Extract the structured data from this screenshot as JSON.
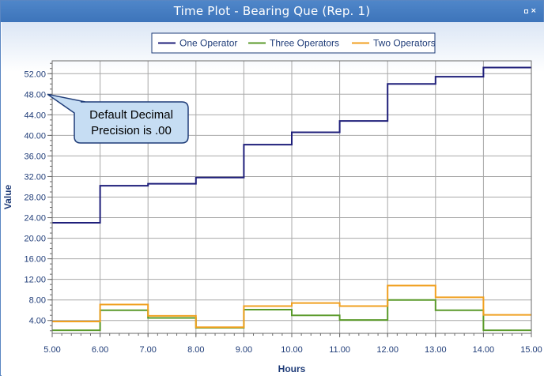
{
  "window": {
    "title": "Time Plot - Bearing Que (Rep. 1)",
    "restore_icon": "restore-icon",
    "close_icon": "close-icon"
  },
  "annotation": {
    "text_line1": "Default Decimal",
    "text_line2": "Precision is .00"
  },
  "chart_data": {
    "type": "line",
    "step": true,
    "xlabel": "Hours",
    "ylabel": "Value",
    "xlim": [
      5,
      15
    ],
    "ylim": [
      1.5,
      54.5
    ],
    "x_ticks": [
      "5.00",
      "6.00",
      "7.00",
      "8.00",
      "9.00",
      "10.00",
      "11.00",
      "12.00",
      "13.00",
      "14.00",
      "15.00"
    ],
    "y_ticks": [
      "4.00",
      "8.00",
      "12.00",
      "16.00",
      "20.00",
      "24.00",
      "28.00",
      "32.00",
      "36.00",
      "40.00",
      "44.00",
      "48.00",
      "52.00"
    ],
    "grid": true,
    "legend_position": "top",
    "series": [
      {
        "name": "One Operator",
        "color": "#1f1f7a",
        "points": [
          [
            5,
            23.0
          ],
          [
            6,
            30.2
          ],
          [
            7,
            30.6
          ],
          [
            8,
            31.8
          ],
          [
            9,
            38.2
          ],
          [
            10,
            40.6
          ],
          [
            11,
            42.8
          ],
          [
            12,
            50.0
          ],
          [
            13,
            51.4
          ],
          [
            14,
            53.2
          ],
          [
            15,
            53.2
          ]
        ]
      },
      {
        "name": "Three Operators",
        "color": "#5a9a2a",
        "points": [
          [
            5,
            2.1
          ],
          [
            6,
            6.0
          ],
          [
            7,
            4.5
          ],
          [
            8,
            2.6
          ],
          [
            9,
            6.1
          ],
          [
            10,
            5.0
          ],
          [
            11,
            4.1
          ],
          [
            12,
            8.0
          ],
          [
            13,
            6.0
          ],
          [
            14,
            2.1
          ],
          [
            15,
            2.1
          ]
        ]
      },
      {
        "name": "Two Operators",
        "color": "#f0a020",
        "points": [
          [
            5,
            3.8
          ],
          [
            6,
            7.1
          ],
          [
            7,
            4.9
          ],
          [
            8,
            2.7
          ],
          [
            9,
            6.8
          ],
          [
            10,
            7.4
          ],
          [
            11,
            6.8
          ],
          [
            12,
            10.8
          ],
          [
            13,
            8.5
          ],
          [
            14,
            5.1
          ],
          [
            15,
            5.1
          ]
        ]
      }
    ]
  }
}
